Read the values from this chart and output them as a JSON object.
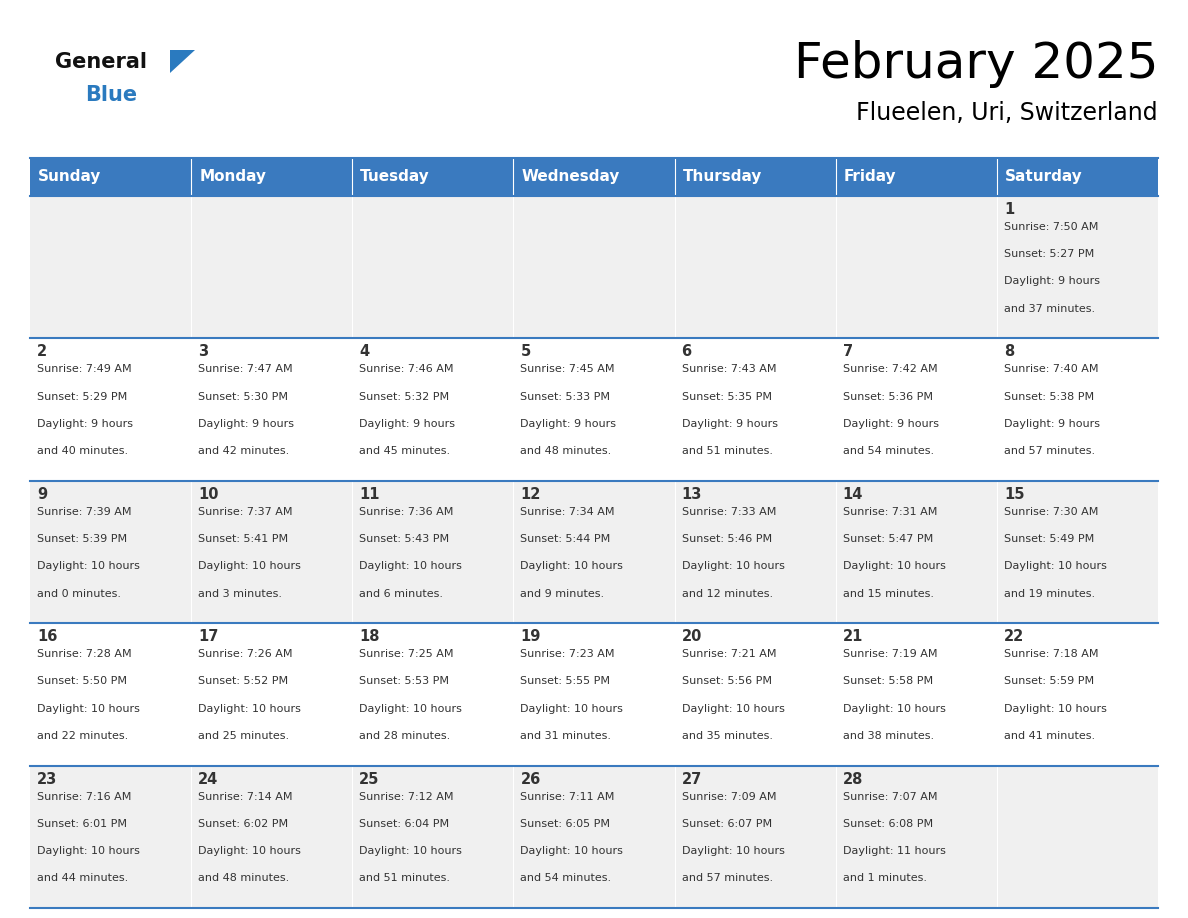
{
  "title": "February 2025",
  "subtitle": "Flueelen, Uri, Switzerland",
  "days_of_week": [
    "Sunday",
    "Monday",
    "Tuesday",
    "Wednesday",
    "Thursday",
    "Friday",
    "Saturday"
  ],
  "header_bg": "#3a7abf",
  "header_text": "#ffffff",
  "cell_bg_row0": "#f0f0f0",
  "cell_bg_row1": "#ffffff",
  "cell_bg_row2": "#f0f0f0",
  "cell_bg_row3": "#ffffff",
  "cell_bg_row4": "#f0f0f0",
  "border_color": "#3a7abf",
  "day_number_color": "#333333",
  "info_text_color": "#333333",
  "title_color": "#000000",
  "blue_color": "#2a7abf",
  "general_text_color": "#111111",
  "calendar_data": [
    {
      "day": 1,
      "col": 6,
      "row": 0,
      "sunrise": "7:50 AM",
      "sunset": "5:27 PM",
      "daylight_hours": 9,
      "daylight_minutes": 37
    },
    {
      "day": 2,
      "col": 0,
      "row": 1,
      "sunrise": "7:49 AM",
      "sunset": "5:29 PM",
      "daylight_hours": 9,
      "daylight_minutes": 40
    },
    {
      "day": 3,
      "col": 1,
      "row": 1,
      "sunrise": "7:47 AM",
      "sunset": "5:30 PM",
      "daylight_hours": 9,
      "daylight_minutes": 42
    },
    {
      "day": 4,
      "col": 2,
      "row": 1,
      "sunrise": "7:46 AM",
      "sunset": "5:32 PM",
      "daylight_hours": 9,
      "daylight_minutes": 45
    },
    {
      "day": 5,
      "col": 3,
      "row": 1,
      "sunrise": "7:45 AM",
      "sunset": "5:33 PM",
      "daylight_hours": 9,
      "daylight_minutes": 48
    },
    {
      "day": 6,
      "col": 4,
      "row": 1,
      "sunrise": "7:43 AM",
      "sunset": "5:35 PM",
      "daylight_hours": 9,
      "daylight_minutes": 51
    },
    {
      "day": 7,
      "col": 5,
      "row": 1,
      "sunrise": "7:42 AM",
      "sunset": "5:36 PM",
      "daylight_hours": 9,
      "daylight_minutes": 54
    },
    {
      "day": 8,
      "col": 6,
      "row": 1,
      "sunrise": "7:40 AM",
      "sunset": "5:38 PM",
      "daylight_hours": 9,
      "daylight_minutes": 57
    },
    {
      "day": 9,
      "col": 0,
      "row": 2,
      "sunrise": "7:39 AM",
      "sunset": "5:39 PM",
      "daylight_hours": 10,
      "daylight_minutes": 0
    },
    {
      "day": 10,
      "col": 1,
      "row": 2,
      "sunrise": "7:37 AM",
      "sunset": "5:41 PM",
      "daylight_hours": 10,
      "daylight_minutes": 3
    },
    {
      "day": 11,
      "col": 2,
      "row": 2,
      "sunrise": "7:36 AM",
      "sunset": "5:43 PM",
      "daylight_hours": 10,
      "daylight_minutes": 6
    },
    {
      "day": 12,
      "col": 3,
      "row": 2,
      "sunrise": "7:34 AM",
      "sunset": "5:44 PM",
      "daylight_hours": 10,
      "daylight_minutes": 9
    },
    {
      "day": 13,
      "col": 4,
      "row": 2,
      "sunrise": "7:33 AM",
      "sunset": "5:46 PM",
      "daylight_hours": 10,
      "daylight_minutes": 12
    },
    {
      "day": 14,
      "col": 5,
      "row": 2,
      "sunrise": "7:31 AM",
      "sunset": "5:47 PM",
      "daylight_hours": 10,
      "daylight_minutes": 15
    },
    {
      "day": 15,
      "col": 6,
      "row": 2,
      "sunrise": "7:30 AM",
      "sunset": "5:49 PM",
      "daylight_hours": 10,
      "daylight_minutes": 19
    },
    {
      "day": 16,
      "col": 0,
      "row": 3,
      "sunrise": "7:28 AM",
      "sunset": "5:50 PM",
      "daylight_hours": 10,
      "daylight_minutes": 22
    },
    {
      "day": 17,
      "col": 1,
      "row": 3,
      "sunrise": "7:26 AM",
      "sunset": "5:52 PM",
      "daylight_hours": 10,
      "daylight_minutes": 25
    },
    {
      "day": 18,
      "col": 2,
      "row": 3,
      "sunrise": "7:25 AM",
      "sunset": "5:53 PM",
      "daylight_hours": 10,
      "daylight_minutes": 28
    },
    {
      "day": 19,
      "col": 3,
      "row": 3,
      "sunrise": "7:23 AM",
      "sunset": "5:55 PM",
      "daylight_hours": 10,
      "daylight_minutes": 31
    },
    {
      "day": 20,
      "col": 4,
      "row": 3,
      "sunrise": "7:21 AM",
      "sunset": "5:56 PM",
      "daylight_hours": 10,
      "daylight_minutes": 35
    },
    {
      "day": 21,
      "col": 5,
      "row": 3,
      "sunrise": "7:19 AM",
      "sunset": "5:58 PM",
      "daylight_hours": 10,
      "daylight_minutes": 38
    },
    {
      "day": 22,
      "col": 6,
      "row": 3,
      "sunrise": "7:18 AM",
      "sunset": "5:59 PM",
      "daylight_hours": 10,
      "daylight_minutes": 41
    },
    {
      "day": 23,
      "col": 0,
      "row": 4,
      "sunrise": "7:16 AM",
      "sunset": "6:01 PM",
      "daylight_hours": 10,
      "daylight_minutes": 44
    },
    {
      "day": 24,
      "col": 1,
      "row": 4,
      "sunrise": "7:14 AM",
      "sunset": "6:02 PM",
      "daylight_hours": 10,
      "daylight_minutes": 48
    },
    {
      "day": 25,
      "col": 2,
      "row": 4,
      "sunrise": "7:12 AM",
      "sunset": "6:04 PM",
      "daylight_hours": 10,
      "daylight_minutes": 51
    },
    {
      "day": 26,
      "col": 3,
      "row": 4,
      "sunrise": "7:11 AM",
      "sunset": "6:05 PM",
      "daylight_hours": 10,
      "daylight_minutes": 54
    },
    {
      "day": 27,
      "col": 4,
      "row": 4,
      "sunrise": "7:09 AM",
      "sunset": "6:07 PM",
      "daylight_hours": 10,
      "daylight_minutes": 57
    },
    {
      "day": 28,
      "col": 5,
      "row": 4,
      "sunrise": "7:07 AM",
      "sunset": "6:08 PM",
      "daylight_hours": 11,
      "daylight_minutes": 1
    }
  ]
}
